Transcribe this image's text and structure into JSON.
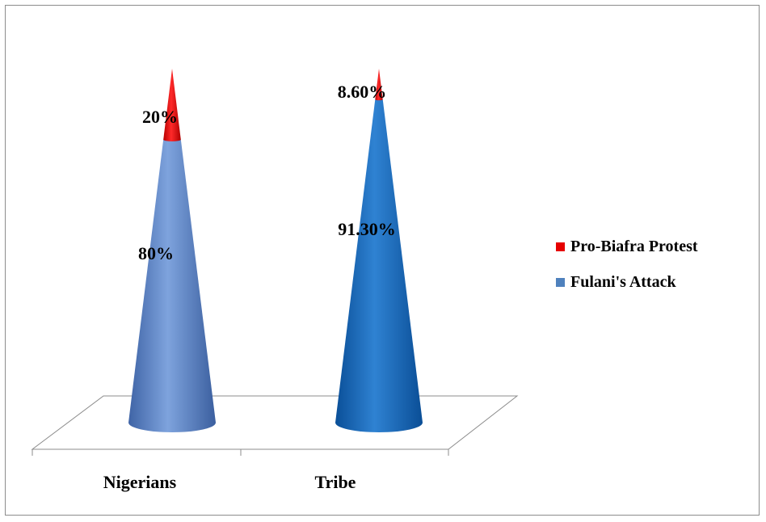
{
  "chart_data": {
    "type": "bar",
    "style": "3d-cone-stacked-100",
    "categories": [
      "Nigerians",
      "Tribe"
    ],
    "series": [
      {
        "name": "Fulani's Attack",
        "values": [
          80,
          91.3
        ],
        "labels": [
          "80%",
          "91.30%"
        ],
        "colors": [
          "#5b83c6",
          "#1664b4"
        ]
      },
      {
        "name": "Pro-Biafra Protest",
        "values": [
          20,
          8.6
        ],
        "labels": [
          "20%",
          "8.60%"
        ],
        "colors": [
          "#e60000",
          "#e60000"
        ]
      }
    ],
    "ylim": [
      0,
      100
    ],
    "grid": false,
    "legend_position": "right"
  }
}
